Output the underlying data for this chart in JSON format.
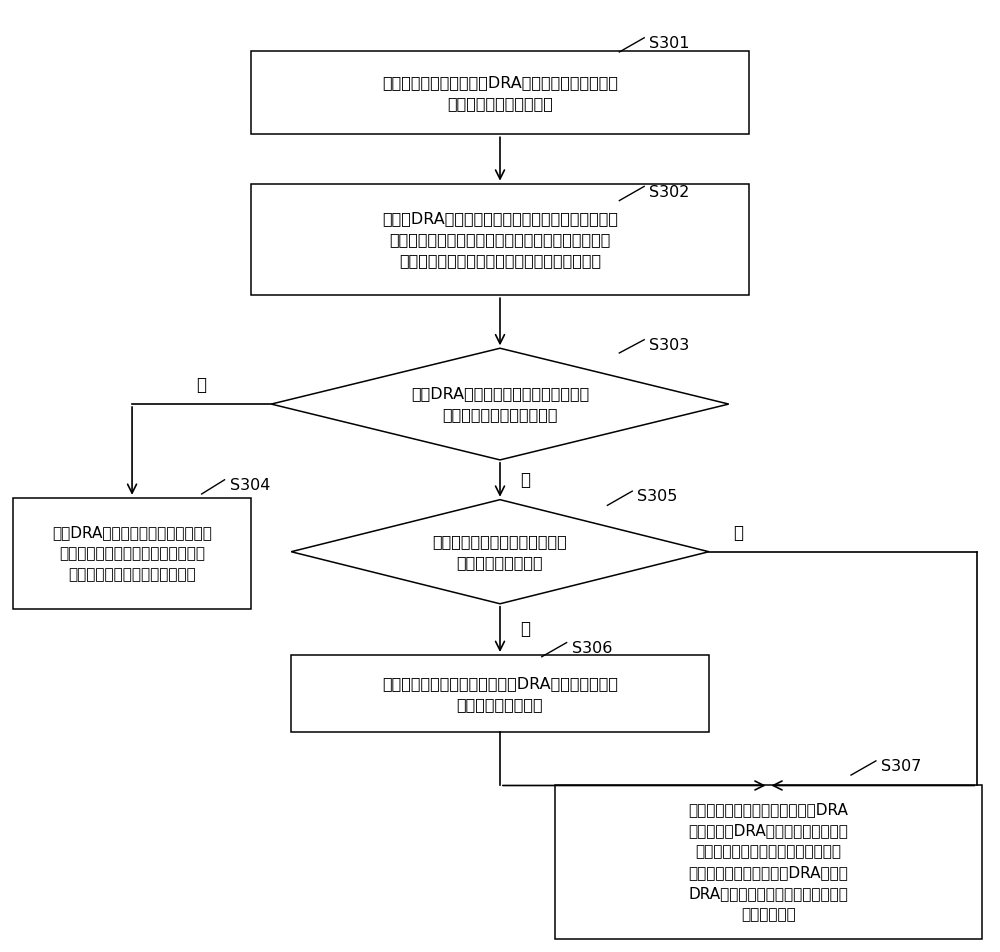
{
  "bg_color": "#ffffff",
  "box_color": "#ffffff",
  "box_edge_color": "#000000",
  "arrow_color": "#000000",
  "text_color": "#000000",
  "nodes": {
    "S301_text": "第一运营商网络中的第一DRA节点将第二节点发送的\n请求消息转发给第三节点",
    "S302_text": "当第一DRA节点接收到第三节点发送的路由错误响应\n消息后，基于该路由错误响应消息中携带的源主机标\n识，确定发送该路由错误响应消息的源主机类型",
    "S303_text": "第一DRA节点基于确定的源主机类型，\n判断是否需要发起路由重选",
    "S304_text": "第一DRA向第二节点返回配置的永久\n错误响应消息，所述永久错误响应消\n息用于指示不需要进行路由重选",
    "S305_text": "判断是否存在能够用于传输所述\n请求消息的其它路由",
    "S306_text": "将所述请求消息发送给所述第一DRA节点在所述其它\n路由中的下一跳节点",
    "S307_text": "若所述源主机类型为与所述第一DRA\n节点配对的DRA节点，向所述第二节\n点返回永久错误响应消息；若所述源\n主机类型为不与所述第一DRA配对的\nDRA节点，向所述第二节点返回路由\n错误响应消息"
  },
  "yes_label": "是",
  "no_label": "否"
}
